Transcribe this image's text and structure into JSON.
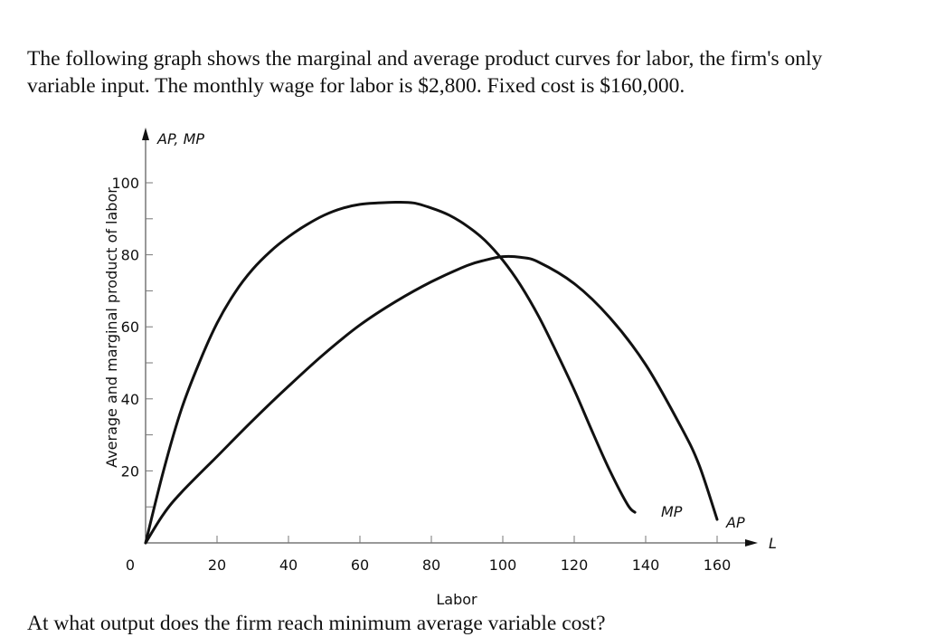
{
  "problem": {
    "intro": "The following graph shows the marginal and average product curves for labor, the firm's only variable input. The monthly wage for labor is $2,800. Fixed cost is $160,000.",
    "question": "At what output does the firm reach minimum average variable cost?"
  },
  "chart_data": {
    "type": "line",
    "title": "",
    "xlabel": "Labor",
    "ylabel": "Average and marginal product of labor",
    "y_axis_top_label": "AP, MP",
    "x_axis_end_label": "L",
    "xlim": [
      0,
      170
    ],
    "ylim": [
      0,
      110
    ],
    "x_ticks": [
      0,
      20,
      40,
      60,
      80,
      100,
      120,
      140,
      160
    ],
    "y_ticks": [
      20,
      40,
      60,
      80,
      100
    ],
    "grid": false,
    "series": [
      {
        "name": "MP",
        "color": "#111111",
        "x": [
          0,
          5,
          10,
          15,
          20,
          25,
          30,
          35,
          40,
          45,
          50,
          55,
          60,
          65,
          70,
          75,
          80,
          85,
          90,
          95,
          100,
          105,
          110,
          115,
          120,
          125,
          130,
          135,
          137
        ],
        "y": [
          0,
          20,
          37,
          50,
          61,
          69.5,
          76,
          81,
          85,
          88.3,
          91,
          92.9,
          94,
          94.4,
          94.6,
          94.4,
          93,
          91,
          88,
          84,
          78.5,
          71.5,
          63,
          53,
          42.5,
          31,
          20,
          10.5,
          8.5
        ]
      },
      {
        "name": "AP",
        "color": "#111111",
        "x": [
          0,
          5,
          10,
          20,
          30,
          40,
          50,
          60,
          70,
          80,
          90,
          95,
          100,
          105,
          110,
          120,
          130,
          140,
          150,
          155,
          160
        ],
        "y": [
          0,
          8,
          14,
          24,
          34,
          43.5,
          52.5,
          60.5,
          67,
          72.5,
          77,
          78.5,
          79.5,
          79.3,
          78,
          72,
          62.5,
          49.5,
          32,
          21.5,
          6.5
        ]
      }
    ]
  }
}
